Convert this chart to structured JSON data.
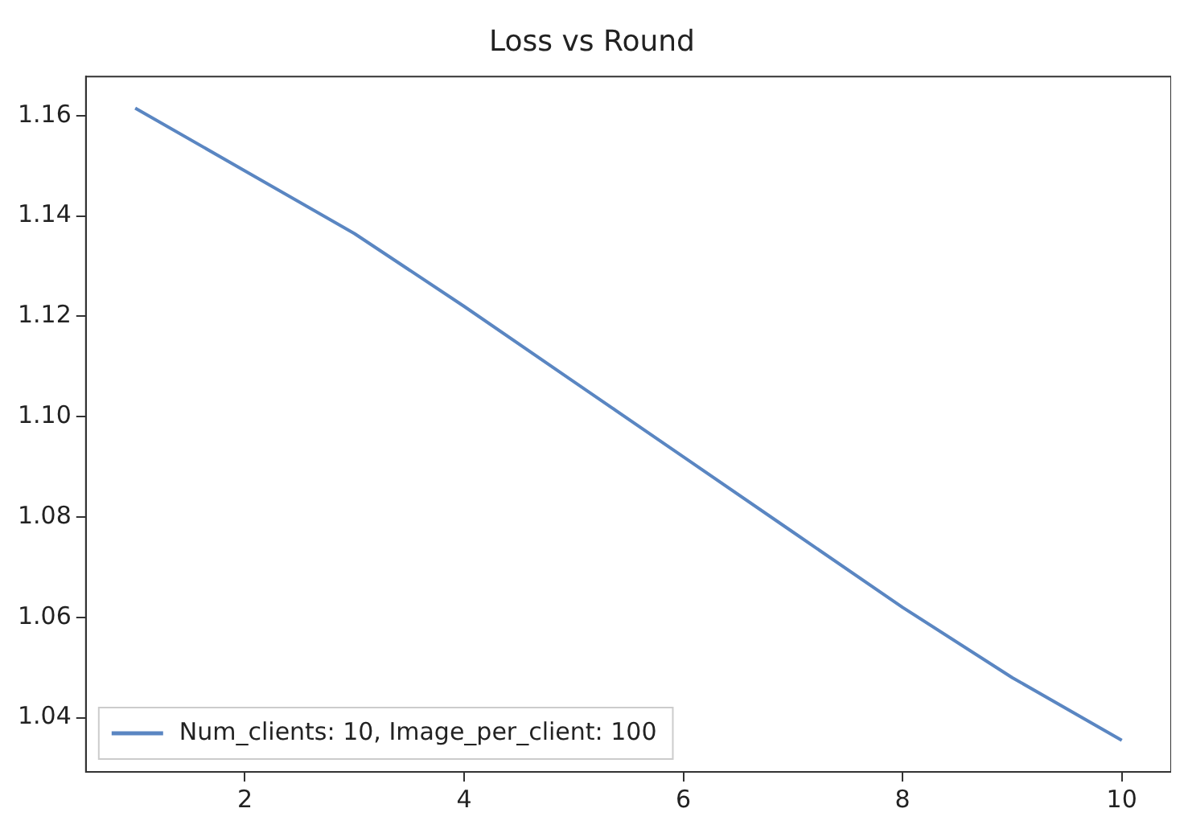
{
  "chart_data": {
    "type": "line",
    "title": "Loss vs Round",
    "x": [
      1,
      2,
      3,
      4,
      5,
      6,
      7,
      8,
      9,
      10
    ],
    "series": [
      {
        "name": "Num_clients: 10, Image_per_client: 100",
        "color": "#5a86c2",
        "values": [
          1.1615,
          1.149,
          1.1365,
          1.122,
          1.107,
          1.092,
          1.077,
          1.062,
          1.048,
          1.0355
        ]
      }
    ],
    "xlim": [
      0.55,
      10.45
    ],
    "xticks": [
      2,
      4,
      6,
      8,
      10
    ],
    "ylim": [
      1.0292,
      1.1678
    ],
    "yticks": [
      {
        "value": 1.04,
        "label": "1.04"
      },
      {
        "value": 1.06,
        "label": "1.06"
      },
      {
        "value": 1.08,
        "label": "1.08"
      },
      {
        "value": 1.1,
        "label": "1.10"
      },
      {
        "value": 1.12,
        "label": "1.12"
      },
      {
        "value": 1.14,
        "label": "1.14"
      },
      {
        "value": 1.16,
        "label": "1.16"
      }
    ],
    "grid": false,
    "legend": "bottom left",
    "marker": "none",
    "line_style": "solid"
  }
}
